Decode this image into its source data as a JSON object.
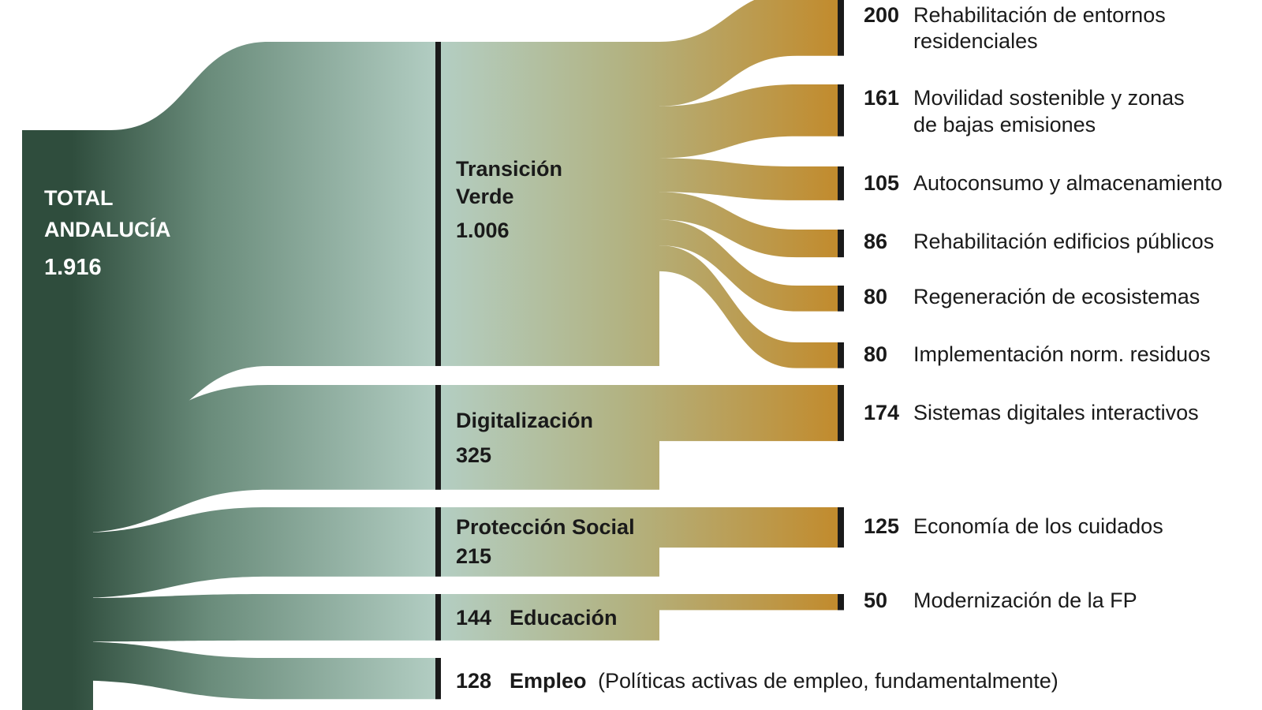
{
  "colors": {
    "root_dark": "#2f4d3d",
    "root_mid": "#6a8c7b",
    "root_light": "#b3cec3",
    "mid_olive": "#b2b383",
    "leaf_gold": "#c28a2b",
    "bar": "#1a1a1a"
  },
  "total": {
    "label_line1": "TOTAL",
    "label_line2": "ANDALUCÍA",
    "value": "1.916",
    "amount": 1916
  },
  "categories": [
    {
      "label": "Transición",
      "label_line2": "Verde",
      "value": "1.006",
      "amount": 1006
    },
    {
      "label": "Digitalización",
      "value": "325",
      "amount": 325
    },
    {
      "label": "Protección Social",
      "value": "215",
      "amount": 215
    },
    {
      "label": "Educación",
      "value": "144",
      "amount": 144
    },
    {
      "label": "Empleo",
      "value": "128",
      "amount": 128,
      "note": "(Políticas activas de empleo, fundamentalmente)"
    }
  ],
  "leaves": [
    {
      "parent": "Transición Verde",
      "value": "200",
      "amount": 200,
      "label": "Rehabilitación de entornos",
      "label_line2": "residenciales"
    },
    {
      "parent": "Transición Verde",
      "value": "161",
      "amount": 161,
      "label": "Movilidad sostenible y zonas",
      "label_line2": "de bajas emisiones"
    },
    {
      "parent": "Transición Verde",
      "value": "105",
      "amount": 105,
      "label": "Autoconsumo y almacenamiento"
    },
    {
      "parent": "Transición Verde",
      "value": "86",
      "amount": 86,
      "label": "Rehabilitación edificios públicos"
    },
    {
      "parent": "Transición Verde",
      "value": "80",
      "amount": 80,
      "label": "Regeneración de ecosistemas"
    },
    {
      "parent": "Transición Verde",
      "value": "80",
      "amount": 80,
      "label": "Implementación norm. residuos"
    },
    {
      "parent": "Digitalización",
      "value": "174",
      "amount": 174,
      "label": "Sistemas digitales interactivos"
    },
    {
      "parent": "Protección Social",
      "value": "125",
      "amount": 125,
      "label": "Economía de los cuidados"
    },
    {
      "parent": "Educación",
      "value": "50",
      "amount": 50,
      "label": "Modernización de la FP"
    }
  ]
}
